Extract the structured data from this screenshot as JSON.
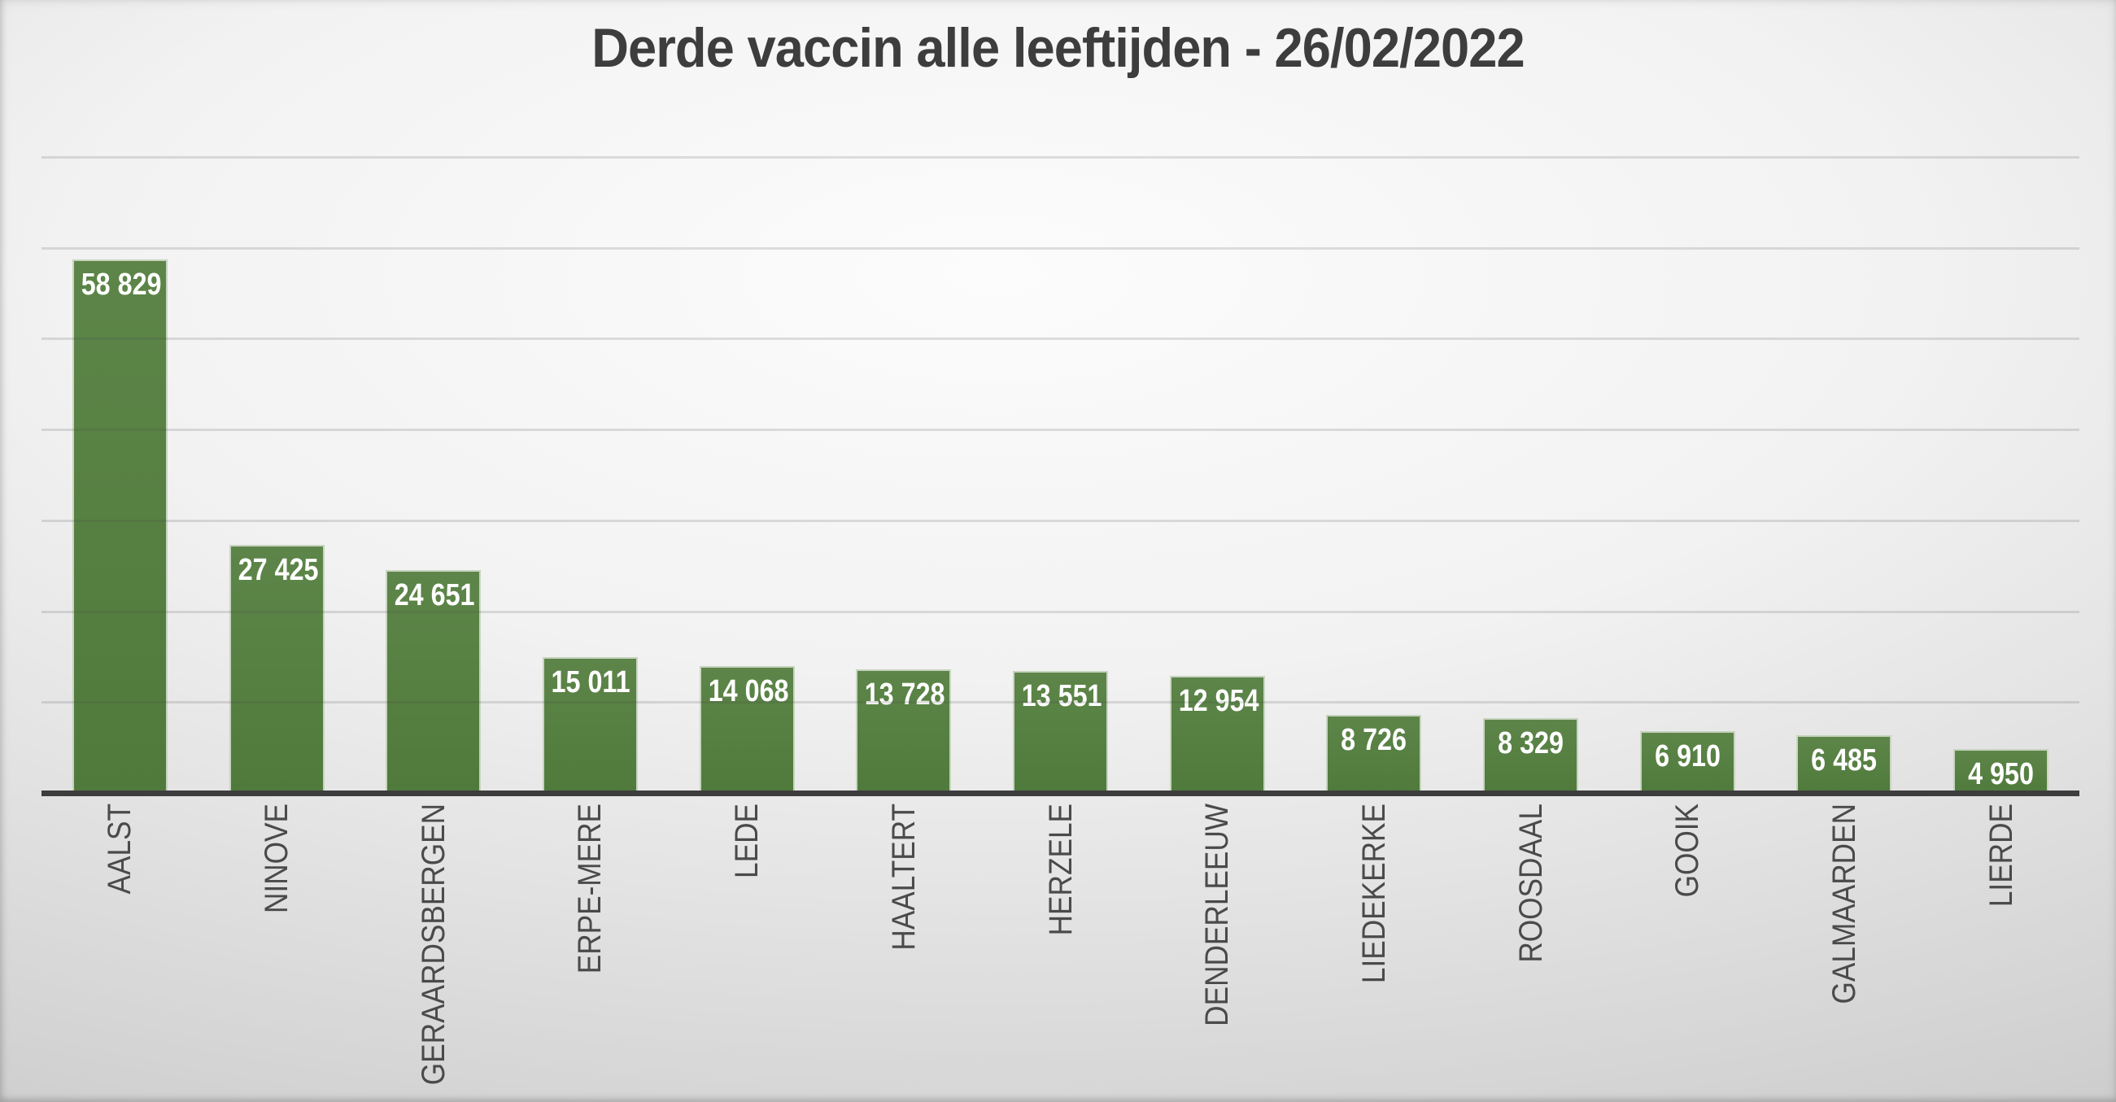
{
  "chart_data": {
    "type": "bar",
    "title": "Derde vaccin alle leeftijden - 26/02/2022",
    "categories": [
      "AALST",
      "NINOVE",
      "GERAARDSBERGEN",
      "ERPE-MERE",
      "LEDE",
      "HAALTERT",
      "HERZELE",
      "DENDERLEEUW",
      "LIEDEKERKE",
      "ROOSDAAL",
      "GOOIK",
      "GALMAARDEN",
      "LIERDE"
    ],
    "values": [
      58829,
      27425,
      24651,
      15011,
      14068,
      13728,
      13551,
      12954,
      8726,
      8329,
      6910,
      6485,
      4950
    ],
    "value_labels": [
      "58 829",
      "27 425",
      "24 651",
      "15 011",
      "14 068",
      "13 728",
      "13 551",
      "12 954",
      "8 726",
      "8 329",
      "6 910",
      "6 485",
      "4 950"
    ],
    "xlabel": "",
    "ylabel": "",
    "ylim": [
      0,
      70000
    ],
    "gridline_step": 10000,
    "grid": true,
    "legend": false,
    "y_axis_tick_labels_visible": false,
    "data_label_position": "inside-end",
    "category_label_rotation_deg": -90,
    "colors": {
      "bar": "#567f42",
      "bar_border": "#eef1ea",
      "axis_line": "#3d3d3d",
      "gridline": "#b5b5b5",
      "title_text": "#3d3d3d",
      "value_label_text": "#ffffff",
      "category_label_text": "#4a4a4a",
      "background_center": "#fcfcfc",
      "background_edge": "#c7c7c7"
    }
  }
}
